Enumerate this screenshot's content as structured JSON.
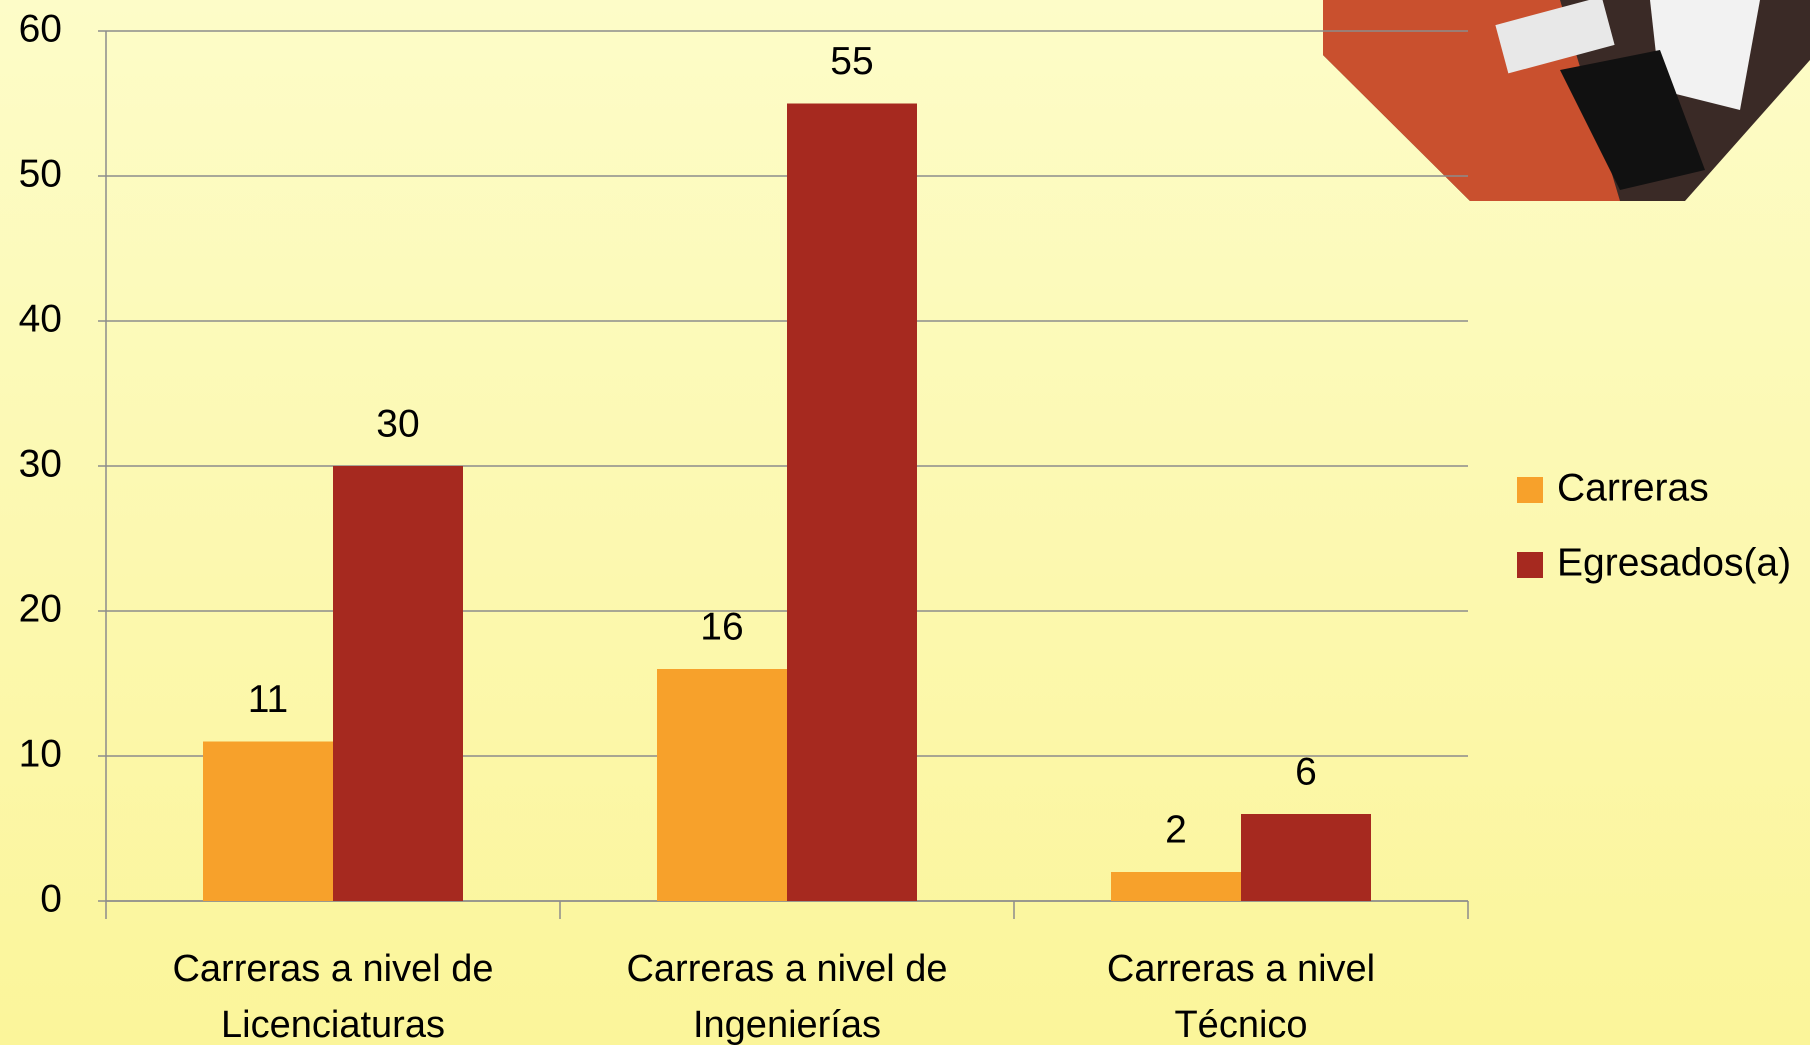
{
  "chart_data": {
    "type": "bar",
    "categories": [
      "Carreras a nivel de Licenciaturas",
      "Carreras a nivel de Ingenierías",
      "Carreras a nivel Técnico"
    ],
    "series": [
      {
        "name": "Carreras",
        "color": "#f7a12b",
        "values": [
          11,
          16,
          2
        ]
      },
      {
        "name": "Egresados(a)",
        "color": "#a6291f",
        "values": [
          30,
          55,
          6
        ]
      }
    ],
    "ylim": [
      0,
      60
    ],
    "yticks": [
      0,
      10,
      20,
      30,
      40,
      50,
      60
    ],
    "grid": true,
    "legend": "right"
  }
}
